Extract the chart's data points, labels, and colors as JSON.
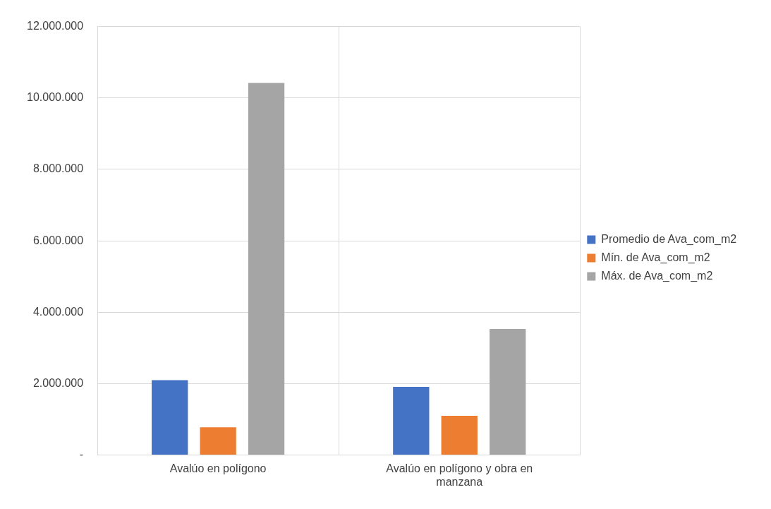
{
  "chart_data": {
    "type": "bar",
    "categories": [
      "Avalúo en polígono",
      "Avalúo en polígono y obra en manzana"
    ],
    "series": [
      {
        "name": "Promedio de Ava_com_m2",
        "color": "#4472c4",
        "values": [
          2100000,
          1910000
        ]
      },
      {
        "name": "Mín. de Ava_com_m2",
        "color": "#ed7d31",
        "values": [
          780000,
          1100000
        ]
      },
      {
        "name": "Máx. de Ava_com_m2",
        "color": "#a5a5a5",
        "values": [
          10420000,
          3530000
        ]
      }
    ],
    "ylim": [
      0,
      12000000
    ],
    "yticks": [
      {
        "value": 0,
        "label": "-"
      },
      {
        "value": 2000000,
        "label": "2.000.000"
      },
      {
        "value": 4000000,
        "label": "4.000.000"
      },
      {
        "value": 6000000,
        "label": "6.000.000"
      },
      {
        "value": 8000000,
        "label": "8.000.000"
      },
      {
        "value": 10000000,
        "label": "10.000.000"
      },
      {
        "value": 12000000,
        "label": "12.000.000"
      }
    ],
    "grid": true,
    "legend": "right"
  }
}
